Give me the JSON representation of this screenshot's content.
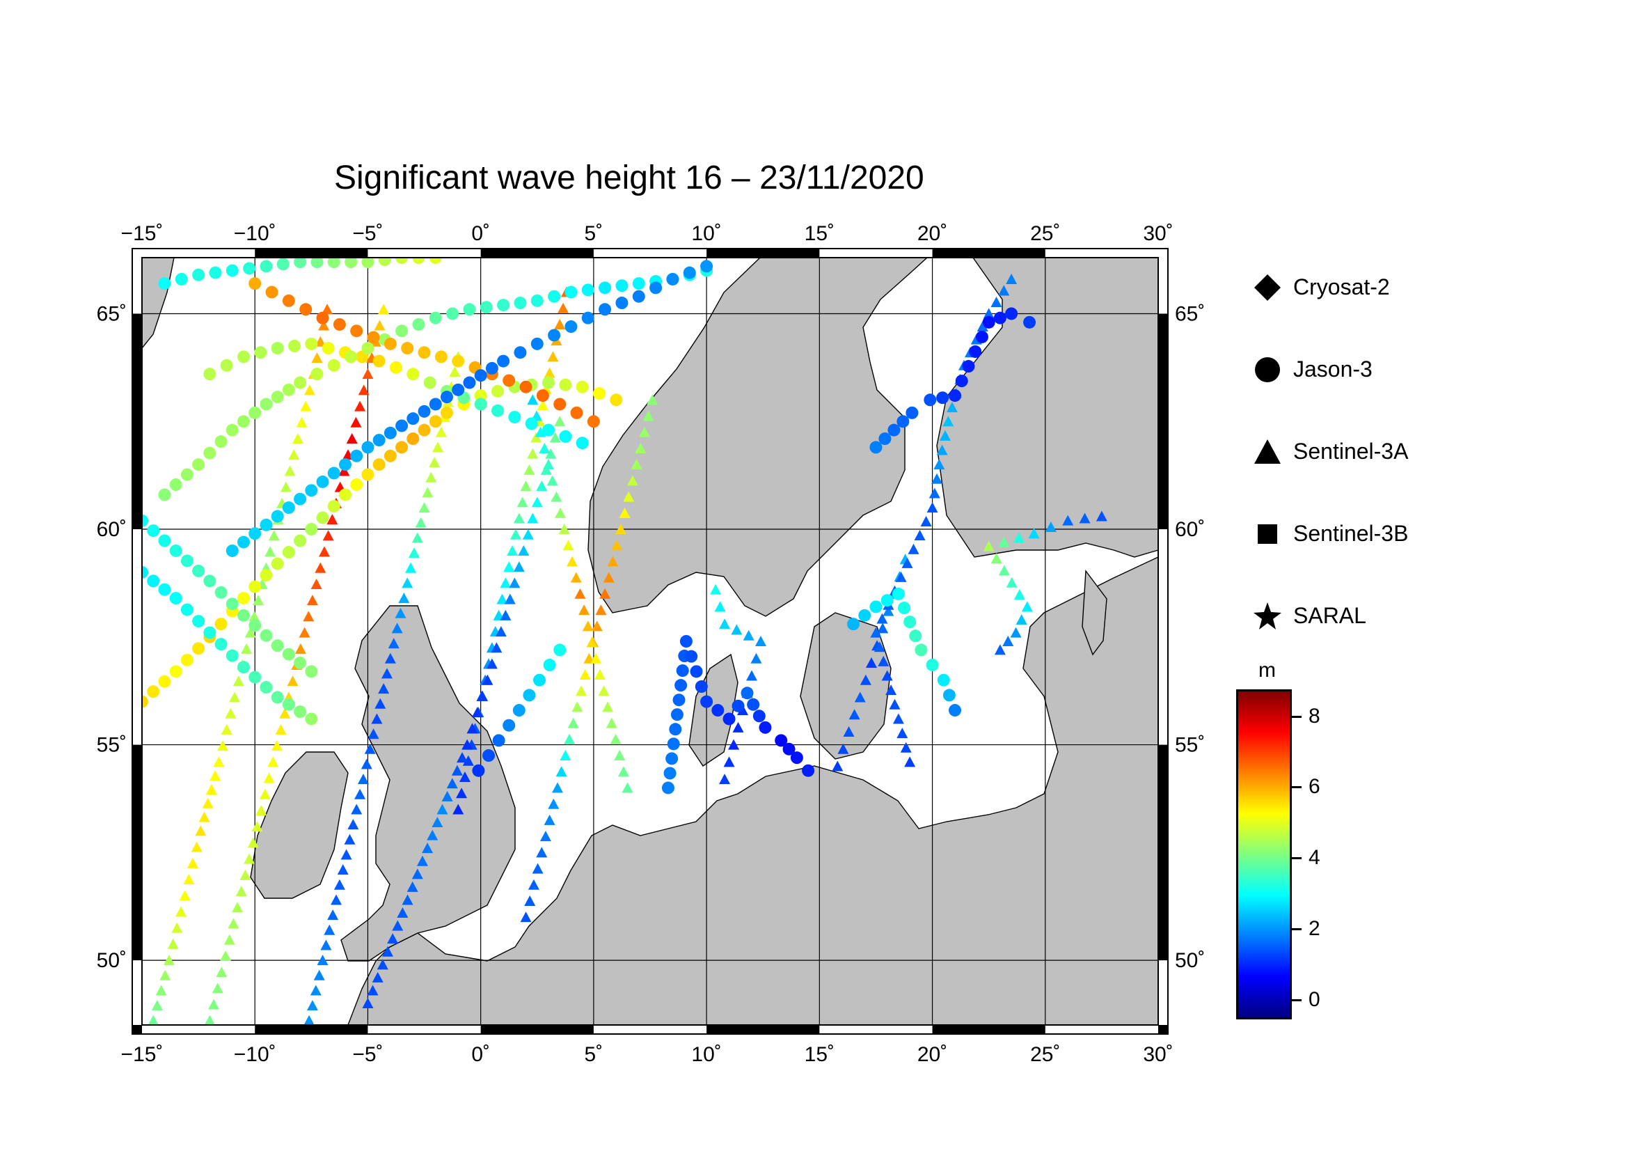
{
  "title": "Significant wave height 16 – 23/11/2020",
  "map": {
    "extent": {
      "lon": [
        -15,
        30
      ],
      "lat": [
        48.5,
        66.3
      ]
    },
    "graticule_lon": [
      -15,
      -10,
      -5,
      0,
      5,
      10,
      15,
      20,
      25,
      30
    ],
    "graticule_lat": [
      50,
      55,
      60,
      65
    ],
    "lon_labels": [
      "−15˚",
      "−10˚",
      "−5˚",
      "0˚",
      "5˚",
      "10˚",
      "15˚",
      "20˚",
      "25˚",
      "30˚"
    ],
    "lat_labels": [
      "50˚",
      "55˚",
      "60˚",
      "65˚"
    ],
    "land_color": "#c0c0c0",
    "sea_color": "#ffffff",
    "coast_color": "#000000"
  },
  "legend": [
    {
      "label": "Cryosat-2",
      "icon": "diamond-icon"
    },
    {
      "label": "Jason-3",
      "icon": "circle-icon"
    },
    {
      "label": "Sentinel-3A",
      "icon": "triangle-icon"
    },
    {
      "label": "Sentinel-3B",
      "icon": "square-icon"
    },
    {
      "label": "SARAL",
      "icon": "star-icon"
    }
  ],
  "colorbar": {
    "unit": "m",
    "range": [
      -0.5,
      8.7
    ],
    "tick_values": [
      0,
      2,
      4,
      6,
      8
    ],
    "tick_labels": [
      "0",
      "2",
      "4",
      "6",
      "8"
    ],
    "colors": [
      "#000080",
      "#0000ff",
      "#0080ff",
      "#00ffff",
      "#80ff80",
      "#ffff00",
      "#ff8000",
      "#ff0000",
      "#800000"
    ]
  },
  "tracks": [
    {
      "satellite": "Sentinel-3A",
      "points": [
        [
          -14.5,
          48.6,
          3.9
        ],
        [
          -13.8,
          50.0,
          4.5
        ],
        [
          -13.1,
          51.5,
          5.2
        ],
        [
          -12.4,
          53.0,
          5.5
        ],
        [
          -11.6,
          54.6,
          5.2
        ],
        [
          -10.9,
          56.1,
          4.8
        ],
        [
          -10.2,
          57.6,
          4.4
        ],
        [
          -9.5,
          59.1,
          4.2
        ],
        [
          -8.8,
          60.6,
          4.5
        ],
        [
          -8.1,
          62.1,
          5.0
        ],
        [
          -7.4,
          63.6,
          5.6
        ],
        [
          -6.8,
          65.1,
          6.5
        ]
      ]
    },
    {
      "satellite": "Sentinel-3A",
      "points": [
        [
          -12.0,
          48.6,
          4.0
        ],
        [
          -11.3,
          50.1,
          4.3
        ],
        [
          -10.6,
          51.6,
          4.6
        ],
        [
          -9.9,
          53.1,
          4.9
        ],
        [
          -9.2,
          54.6,
          5.2
        ],
        [
          -8.5,
          56.1,
          5.6
        ],
        [
          -7.8,
          57.6,
          6.4
        ],
        [
          -7.1,
          59.1,
          6.9
        ],
        [
          -6.4,
          60.6,
          7.4
        ],
        [
          -5.7,
          62.1,
          7.7
        ],
        [
          -5.0,
          63.6,
          6.8
        ],
        [
          -4.3,
          65.1,
          5.4
        ]
      ]
    },
    {
      "satellite": "Sentinel-3A",
      "points": [
        [
          -7.6,
          48.6,
          2.0
        ],
        [
          -7.0,
          50.0,
          1.8
        ],
        [
          -6.4,
          51.4,
          1.5
        ],
        [
          -5.8,
          52.8,
          1.4
        ],
        [
          -5.2,
          54.2,
          1.6
        ],
        [
          -4.6,
          55.6,
          1.3
        ],
        [
          -4.0,
          57.0,
          1.4
        ],
        [
          -3.4,
          58.4,
          2.2
        ],
        [
          -2.8,
          59.8,
          3.6
        ],
        [
          -2.2,
          61.2,
          4.6
        ],
        [
          -1.6,
          62.6,
          5.1
        ],
        [
          -1.0,
          64.0,
          4.8
        ]
      ]
    },
    {
      "satellite": "Sentinel-3A",
      "points": [
        [
          -1.0,
          53.5,
          1.0
        ],
        [
          -0.4,
          55.0,
          1.3
        ],
        [
          0.2,
          56.5,
          1.8
        ],
        [
          0.8,
          58.0,
          2.6
        ],
        [
          1.4,
          59.5,
          3.2
        ],
        [
          2.0,
          61.0,
          4.2
        ],
        [
          2.6,
          62.5,
          5.0
        ],
        [
          3.2,
          64.0,
          5.8
        ],
        [
          3.8,
          65.5,
          6.6
        ]
      ]
    },
    {
      "satellite": "Sentinel-3A",
      "points": [
        [
          2.0,
          51.0,
          1.4
        ],
        [
          2.7,
          52.5,
          1.6
        ],
        [
          3.4,
          54.0,
          2.1
        ],
        [
          4.1,
          55.5,
          4.0
        ],
        [
          4.8,
          57.0,
          5.8
        ],
        [
          5.5,
          58.5,
          6.5
        ],
        [
          6.2,
          60.0,
          5.6
        ],
        [
          6.9,
          61.5,
          4.4
        ],
        [
          7.6,
          63.0,
          4.2
        ]
      ]
    },
    {
      "satellite": "Sentinel-3A",
      "points": [
        [
          -5.0,
          49.0,
          1.3
        ],
        [
          -3.9,
          50.5,
          1.4
        ],
        [
          -2.8,
          52.0,
          1.6
        ],
        [
          -1.7,
          53.5,
          1.9
        ],
        [
          -0.6,
          55.0,
          1.1
        ],
        [
          0.3,
          56.5,
          1.2
        ],
        [
          1.1,
          58.0,
          1.6
        ],
        [
          1.9,
          59.5,
          2.4
        ],
        [
          2.7,
          61.0,
          3.3
        ],
        [
          3.5,
          62.5,
          4.1
        ]
      ]
    },
    {
      "satellite": "Sentinel-3A",
      "points": [
        [
          6.5,
          54.0,
          3.8
        ],
        [
          5.8,
          55.5,
          4.3
        ],
        [
          5.1,
          57.0,
          5.3
        ],
        [
          4.4,
          58.5,
          6.4
        ],
        [
          3.7,
          60.0,
          4.6
        ],
        [
          3.0,
          61.5,
          3.4
        ],
        [
          2.3,
          63.0,
          2.6
        ]
      ]
    },
    {
      "satellite": "Sentinel-3A",
      "points": [
        [
          10.8,
          54.2,
          1.2
        ],
        [
          11.2,
          55.0,
          1.0
        ],
        [
          11.6,
          55.8,
          1.1
        ],
        [
          12.0,
          56.6,
          1.6
        ],
        [
          12.4,
          57.4,
          2.0
        ],
        [
          10.8,
          57.8,
          2.6
        ],
        [
          10.4,
          58.6,
          3.1
        ]
      ]
    },
    {
      "satellite": "Sentinel-3A",
      "points": [
        [
          15.8,
          54.5,
          1.2
        ],
        [
          16.3,
          55.3,
          1.4
        ],
        [
          16.8,
          56.1,
          1.5
        ],
        [
          17.3,
          56.9,
          1.2
        ],
        [
          17.8,
          57.7,
          1.6
        ],
        [
          18.3,
          58.5,
          2.1
        ],
        [
          18.8,
          59.3,
          2.3
        ]
      ]
    },
    {
      "satellite": "Sentinel-3A",
      "points": [
        [
          19.0,
          54.6,
          1.2
        ],
        [
          18.5,
          55.6,
          1.4
        ],
        [
          18.0,
          56.6,
          1.3
        ],
        [
          17.5,
          57.6,
          1.6
        ],
        [
          20.0,
          60.5,
          1.4
        ],
        [
          20.3,
          61.5,
          2.0
        ],
        [
          20.7,
          62.5,
          2.4
        ],
        [
          21.4,
          63.8,
          1.8
        ],
        [
          22.5,
          65.0,
          1.6
        ],
        [
          23.5,
          65.8,
          1.8
        ]
      ]
    },
    {
      "satellite": "Sentinel-3A",
      "points": [
        [
          23.0,
          57.2,
          1.5
        ],
        [
          23.7,
          57.6,
          2.0
        ],
        [
          24.2,
          58.2,
          2.8
        ],
        [
          22.5,
          59.6,
          4.5
        ],
        [
          24.5,
          59.9,
          2.6
        ],
        [
          26.0,
          60.2,
          1.6
        ],
        [
          27.5,
          60.3,
          1.4
        ]
      ]
    },
    {
      "satellite": "Jason-3",
      "points": [
        [
          -15.0,
          56.0,
          5.6
        ],
        [
          -13.5,
          56.7,
          5.2
        ],
        [
          -12.0,
          57.5,
          5.6
        ],
        [
          -10.5,
          58.4,
          5.2
        ],
        [
          -9.0,
          59.2,
          4.8
        ],
        [
          -7.5,
          60.0,
          4.5
        ],
        [
          -6.0,
          60.8,
          5.0
        ],
        [
          -4.5,
          61.5,
          5.7
        ],
        [
          -3.0,
          62.1,
          6.0
        ],
        [
          -1.5,
          62.7,
          5.6
        ],
        [
          0.0,
          63.1,
          5.0
        ],
        [
          1.5,
          63.3,
          4.6
        ],
        [
          3.0,
          63.4,
          4.6
        ],
        [
          4.5,
          63.3,
          5.0
        ],
        [
          6.0,
          63.0,
          5.5
        ]
      ]
    },
    {
      "satellite": "Jason-3",
      "points": [
        [
          -15.0,
          60.2,
          3.0
        ],
        [
          -13.5,
          59.5,
          3.2
        ],
        [
          -12.0,
          58.8,
          3.6
        ],
        [
          -10.5,
          58.0,
          4.0
        ],
        [
          -9.0,
          57.3,
          4.1
        ],
        [
          -7.5,
          56.7,
          4.2
        ]
      ]
    },
    {
      "satellite": "Jason-3",
      "points": [
        [
          -15.0,
          59.0,
          2.8
        ],
        [
          -13.5,
          58.4,
          3.0
        ],
        [
          -12.0,
          57.6,
          3.2
        ],
        [
          -10.5,
          56.8,
          3.5
        ],
        [
          -9.0,
          56.1,
          3.8
        ],
        [
          -7.5,
          55.6,
          4.3
        ]
      ]
    },
    {
      "satellite": "Jason-3",
      "points": [
        [
          -12.0,
          63.6,
          4.6
        ],
        [
          -10.5,
          64.0,
          4.6
        ],
        [
          -9.0,
          64.2,
          4.5
        ],
        [
          -7.5,
          64.3,
          4.8
        ],
        [
          -6.0,
          64.1,
          5.4
        ],
        [
          -4.5,
          63.9,
          5.6
        ],
        [
          -3.0,
          63.6,
          5.0
        ],
        [
          -1.5,
          63.2,
          4.2
        ],
        [
          0.0,
          62.9,
          3.5
        ],
        [
          1.5,
          62.6,
          3.1
        ],
        [
          3.0,
          62.3,
          3.0
        ],
        [
          4.5,
          62.0,
          2.9
        ]
      ]
    },
    {
      "satellite": "Jason-3",
      "points": [
        [
          -14.0,
          60.8,
          4.2
        ],
        [
          -12.5,
          61.5,
          4.4
        ],
        [
          -11.0,
          62.3,
          4.4
        ],
        [
          -9.5,
          62.9,
          4.3
        ],
        [
          -8.0,
          63.4,
          4.6
        ],
        [
          -6.5,
          63.8,
          4.8
        ],
        [
          -5.0,
          64.2,
          4.6
        ],
        [
          -3.5,
          64.6,
          4.2
        ],
        [
          -2.0,
          64.9,
          3.8
        ],
        [
          -0.5,
          65.1,
          3.6
        ],
        [
          1.0,
          65.2,
          3.4
        ],
        [
          2.5,
          65.3,
          3.2
        ],
        [
          4.0,
          65.5,
          3.0
        ],
        [
          5.5,
          65.6,
          2.8
        ],
        [
          7.0,
          65.7,
          2.9
        ],
        [
          8.5,
          65.8,
          2.9
        ],
        [
          10.0,
          66.0,
          3.2
        ]
      ]
    },
    {
      "satellite": "Jason-3",
      "points": [
        [
          -14.0,
          65.7,
          3.0
        ],
        [
          -12.5,
          65.9,
          3.2
        ],
        [
          -11.0,
          66.0,
          3.1
        ],
        [
          -9.5,
          66.1,
          3.5
        ],
        [
          -8.0,
          66.2,
          3.8
        ],
        [
          -6.5,
          66.2,
          4.2
        ],
        [
          -5.0,
          66.2,
          4.4
        ],
        [
          -3.5,
          66.3,
          4.8
        ],
        [
          -2.0,
          66.3,
          5.0
        ]
      ]
    },
    {
      "satellite": "Jason-3",
      "points": [
        [
          -10.0,
          65.7,
          6.0
        ],
        [
          -8.5,
          65.3,
          6.4
        ],
        [
          -7.0,
          64.9,
          6.6
        ],
        [
          -5.5,
          64.6,
          6.4
        ],
        [
          -4.0,
          64.3,
          6.0
        ],
        [
          -2.5,
          64.1,
          5.8
        ],
        [
          -1.0,
          63.9,
          5.6
        ],
        [
          0.5,
          63.6,
          6.4
        ],
        [
          2.0,
          63.3,
          6.6
        ],
        [
          3.5,
          62.9,
          6.6
        ],
        [
          5.0,
          62.5,
          6.5
        ]
      ]
    },
    {
      "satellite": "Jason-3",
      "points": [
        [
          -11.0,
          59.5,
          2.5
        ],
        [
          -9.5,
          60.1,
          2.6
        ],
        [
          -8.0,
          60.7,
          2.5
        ],
        [
          -6.5,
          61.3,
          2.4
        ],
        [
          -5.0,
          61.9,
          2.2
        ],
        [
          -3.5,
          62.4,
          1.8
        ],
        [
          -2.0,
          62.9,
          1.7
        ],
        [
          -0.5,
          63.4,
          1.6
        ],
        [
          1.0,
          63.9,
          1.7
        ],
        [
          2.5,
          64.3,
          1.8
        ],
        [
          4.0,
          64.7,
          1.9
        ],
        [
          5.5,
          65.1,
          1.8
        ],
        [
          7.0,
          65.4,
          1.8
        ],
        [
          8.5,
          65.8,
          1.9
        ],
        [
          10.0,
          66.1,
          2.0
        ]
      ]
    },
    {
      "satellite": "Jason-3",
      "points": [
        [
          -0.1,
          54.4,
          1.1
        ],
        [
          0.8,
          55.1,
          1.6
        ],
        [
          1.7,
          55.8,
          2.1
        ],
        [
          2.6,
          56.5,
          2.7
        ],
        [
          3.5,
          57.2,
          3.1
        ]
      ]
    },
    {
      "satellite": "Jason-3",
      "points": [
        [
          8.3,
          54.0,
          1.8
        ],
        [
          9.1,
          57.4,
          1.4
        ],
        [
          10.0,
          56.0,
          1.2
        ],
        [
          11.0,
          55.6,
          1.0
        ],
        [
          11.8,
          56.2,
          1.6
        ],
        [
          12.6,
          55.4,
          0.9
        ],
        [
          13.3,
          55.1,
          0.7
        ],
        [
          14.0,
          54.7,
          0.8
        ],
        [
          14.5,
          54.4,
          0.9
        ]
      ]
    },
    {
      "satellite": "Jason-3",
      "points": [
        [
          16.5,
          57.8,
          2.3
        ],
        [
          17.5,
          58.2,
          2.8
        ],
        [
          18.5,
          58.5,
          3.0
        ],
        [
          19.5,
          57.2,
          3.6
        ],
        [
          20.5,
          56.5,
          2.8
        ],
        [
          21.0,
          55.8,
          1.8
        ]
      ]
    },
    {
      "satellite": "Jason-3",
      "points": [
        [
          17.5,
          61.9,
          1.8
        ],
        [
          18.3,
          62.3,
          1.6
        ],
        [
          19.1,
          62.7,
          1.5
        ],
        [
          19.9,
          63.0,
          1.4
        ],
        [
          21.0,
          63.1,
          1.0
        ],
        [
          22.5,
          64.8,
          0.8
        ],
        [
          23.5,
          65.0,
          1.0
        ],
        [
          24.3,
          64.8,
          1.2
        ]
      ]
    }
  ]
}
